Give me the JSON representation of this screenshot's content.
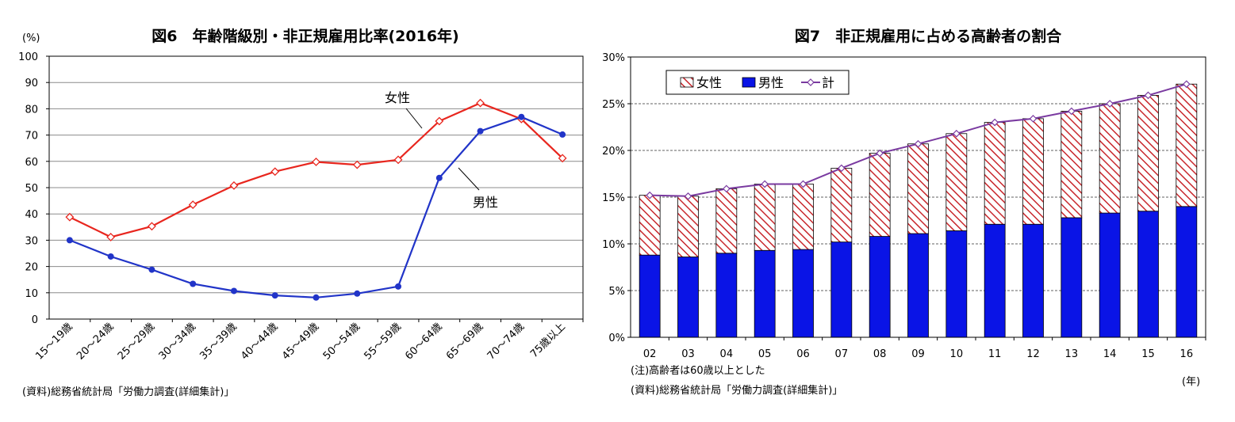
{
  "chart_data": [
    {
      "type": "line",
      "title": "図6　年齢階級別・非正規雇用比率(2016年)",
      "ylabel": "(%)",
      "ylim": [
        0,
        100
      ],
      "yticks": [
        0,
        10,
        20,
        30,
        40,
        50,
        60,
        70,
        80,
        90,
        100
      ],
      "categories": [
        "15～19歳",
        "20～24歳",
        "25～29歳",
        "30～34歳",
        "35～39歳",
        "40～44歳",
        "45～49歳",
        "50～54歳",
        "55～59歳",
        "60～64歳",
        "65～69歳",
        "70～74歳",
        "75歳以上"
      ],
      "series": [
        {
          "name": "女性",
          "color": "#e8261e",
          "marker": "diamond-open",
          "values": [
            38.8,
            31.2,
            35.3,
            43.5,
            50.8,
            56.1,
            59.8,
            58.7,
            60.6,
            75.3,
            82.2,
            76.1,
            61.2
          ]
        },
        {
          "name": "男性",
          "color": "#2134c8",
          "marker": "circle-filled",
          "values": [
            30.0,
            23.8,
            18.8,
            13.4,
            10.7,
            9.0,
            8.2,
            9.7,
            12.4,
            53.7,
            71.5,
            76.9,
            70.2
          ]
        }
      ],
      "grid": true,
      "source": "(資料)総務省統計局「労働力調査(詳細集計)」"
    },
    {
      "type": "bar",
      "stacked": true,
      "title": "図7　非正規雇用に占める高齢者の割合",
      "ylim": [
        0,
        30
      ],
      "yticks": [
        "0%",
        "5%",
        "10%",
        "15%",
        "20%",
        "25%",
        "30%"
      ],
      "categories": [
        "02",
        "03",
        "04",
        "05",
        "06",
        "07",
        "08",
        "09",
        "10",
        "11",
        "12",
        "13",
        "14",
        "15",
        "16"
      ],
      "xunit": "(年)",
      "series": [
        {
          "name": "男性",
          "color": "#0a14e6",
          "values": [
            8.8,
            8.6,
            9.0,
            9.3,
            9.4,
            10.2,
            10.8,
            11.1,
            11.4,
            12.1,
            12.1,
            12.8,
            13.3,
            13.5,
            14.0
          ]
        },
        {
          "name": "女性",
          "color": "#c8282d",
          "pattern": "hatch",
          "values": [
            6.4,
            6.5,
            6.9,
            7.1,
            7.0,
            7.9,
            8.9,
            9.6,
            10.4,
            10.9,
            11.3,
            11.4,
            11.7,
            12.4,
            13.1
          ]
        },
        {
          "name": "計",
          "color": "#7a3aa0",
          "marker": "diamond-open",
          "type": "line",
          "values": [
            15.2,
            15.1,
            15.9,
            16.4,
            16.4,
            18.1,
            19.7,
            20.7,
            21.8,
            23.0,
            23.4,
            24.2,
            25.0,
            25.9,
            27.1
          ]
        }
      ],
      "legend": "top-left",
      "legend_order": [
        "女性",
        "男性",
        "計"
      ],
      "grid": true,
      "note": "(注)高齢者は60歳以上とした",
      "source": "(資料)総務省統計局「労働力調査(詳細集計)」"
    }
  ]
}
